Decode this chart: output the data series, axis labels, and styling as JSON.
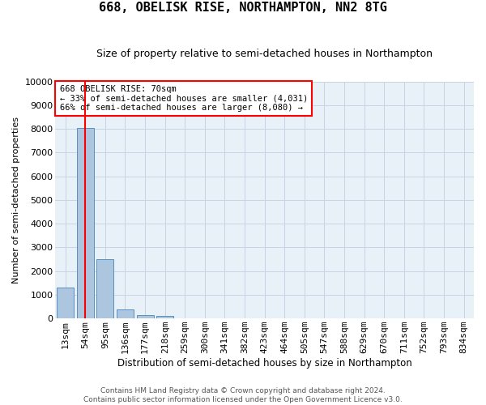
{
  "title": "668, OBELISK RISE, NORTHAMPTON, NN2 8TG",
  "subtitle": "Size of property relative to semi-detached houses in Northampton",
  "xlabel": "Distribution of semi-detached houses by size in Northampton",
  "ylabel": "Number of semi-detached properties",
  "footer_line1": "Contains HM Land Registry data © Crown copyright and database right 2024.",
  "footer_line2": "Contains public sector information licensed under the Open Government Licence v3.0.",
  "categories": [
    "13sqm",
    "54sqm",
    "95sqm",
    "136sqm",
    "177sqm",
    "218sqm",
    "259sqm",
    "300sqm",
    "341sqm",
    "382sqm",
    "423sqm",
    "464sqm",
    "505sqm",
    "547sqm",
    "588sqm",
    "629sqm",
    "670sqm",
    "711sqm",
    "752sqm",
    "793sqm",
    "834sqm"
  ],
  "values": [
    1300,
    8050,
    2500,
    380,
    155,
    115,
    0,
    0,
    0,
    0,
    0,
    0,
    0,
    0,
    0,
    0,
    0,
    0,
    0,
    0,
    0
  ],
  "bar_color": "#adc6e0",
  "bar_edge_color": "#5a8fc0",
  "ylim": [
    0,
    10000
  ],
  "yticks": [
    0,
    1000,
    2000,
    3000,
    4000,
    5000,
    6000,
    7000,
    8000,
    9000,
    10000
  ],
  "property_label": "668 OBELISK RISE: 70sqm",
  "pct_smaller": 33,
  "pct_larger": 66,
  "count_smaller": 4031,
  "count_larger": 8080,
  "vline_x": 1,
  "grid_color": "#c8d4e3",
  "background_color": "#e8f0f8",
  "title_fontsize": 11,
  "subtitle_fontsize": 9,
  "ylabel_fontsize": 8,
  "tick_fontsize": 8,
  "ann_fontsize": 7.5,
  "footer_fontsize": 6.5
}
